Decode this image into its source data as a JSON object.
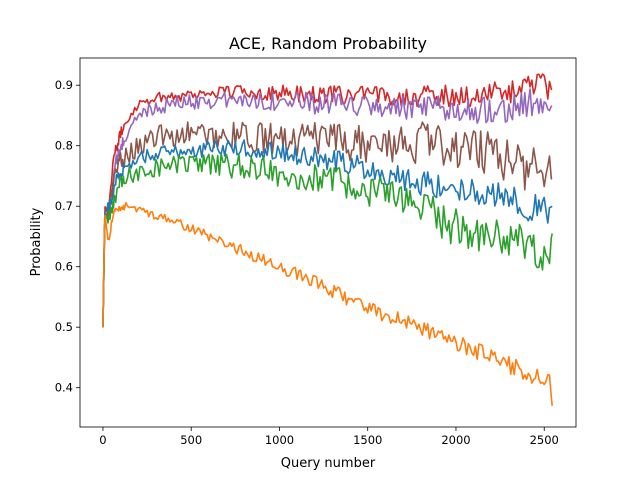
{
  "chart_data": {
    "type": "line",
    "title": "ACE, Random Probability",
    "xlabel": "Query number",
    "ylabel": "Probability",
    "xlim": [
      -130,
      2680
    ],
    "ylim": [
      0.335,
      0.945
    ],
    "xticks": [
      0,
      500,
      1000,
      1500,
      2000,
      2500
    ],
    "xtick_labels": [
      "0",
      "500",
      "1000",
      "1500",
      "2000",
      "2500"
    ],
    "yticks": [
      0.4,
      0.5,
      0.6,
      0.7,
      0.8,
      0.9
    ],
    "ytick_labels": [
      "0.4",
      "0.5",
      "0.6",
      "0.7",
      "0.8",
      "0.9"
    ],
    "grid": false,
    "legend": "none",
    "noise_note": "series are high-frequency noisy; points listed are the smoothed trend",
    "series": [
      {
        "name": "red",
        "color": "#d62728",
        "noise": 0.008,
        "points": [
          [
            0,
            0.5
          ],
          [
            10,
            0.7
          ],
          [
            30,
            0.69
          ],
          [
            60,
            0.78
          ],
          [
            100,
            0.82
          ],
          [
            150,
            0.85
          ],
          [
            200,
            0.87
          ],
          [
            300,
            0.88
          ],
          [
            500,
            0.885
          ],
          [
            700,
            0.89
          ],
          [
            900,
            0.888
          ],
          [
            1200,
            0.885
          ],
          [
            1500,
            0.883
          ],
          [
            1800,
            0.882
          ],
          [
            2100,
            0.883
          ],
          [
            2300,
            0.888
          ],
          [
            2450,
            0.905
          ],
          [
            2530,
            0.895
          ],
          [
            2545,
            0.893
          ]
        ]
      },
      {
        "name": "purple",
        "color": "#9467bd",
        "noise": 0.01,
        "points": [
          [
            0,
            0.5
          ],
          [
            10,
            0.68
          ],
          [
            40,
            0.7
          ],
          [
            70,
            0.77
          ],
          [
            120,
            0.81
          ],
          [
            180,
            0.84
          ],
          [
            250,
            0.86
          ],
          [
            400,
            0.87
          ],
          [
            600,
            0.875
          ],
          [
            900,
            0.875
          ],
          [
            1200,
            0.87
          ],
          [
            1500,
            0.865
          ],
          [
            1800,
            0.86
          ],
          [
            2100,
            0.86
          ],
          [
            2300,
            0.863
          ],
          [
            2450,
            0.87
          ],
          [
            2545,
            0.865
          ]
        ]
      },
      {
        "name": "brown",
        "color": "#8c564b",
        "noise": 0.016,
        "points": [
          [
            0,
            0.5
          ],
          [
            10,
            0.68
          ],
          [
            40,
            0.7
          ],
          [
            70,
            0.76
          ],
          [
            120,
            0.78
          ],
          [
            200,
            0.8
          ],
          [
            300,
            0.815
          ],
          [
            500,
            0.82
          ],
          [
            800,
            0.815
          ],
          [
            1000,
            0.81
          ],
          [
            1200,
            0.81
          ],
          [
            1400,
            0.805
          ],
          [
            1600,
            0.8
          ],
          [
            1800,
            0.805
          ],
          [
            2000,
            0.8
          ],
          [
            2200,
            0.79
          ],
          [
            2400,
            0.765
          ],
          [
            2500,
            0.75
          ],
          [
            2545,
            0.745
          ]
        ]
      },
      {
        "name": "blue",
        "color": "#1f77b4",
        "noise": 0.01,
        "points": [
          [
            0,
            0.5
          ],
          [
            10,
            0.69
          ],
          [
            40,
            0.7
          ],
          [
            80,
            0.75
          ],
          [
            150,
            0.77
          ],
          [
            250,
            0.785
          ],
          [
            400,
            0.79
          ],
          [
            600,
            0.795
          ],
          [
            800,
            0.795
          ],
          [
            1000,
            0.79
          ],
          [
            1200,
            0.78
          ],
          [
            1400,
            0.77
          ],
          [
            1600,
            0.755
          ],
          [
            1800,
            0.74
          ],
          [
            2000,
            0.73
          ],
          [
            2200,
            0.72
          ],
          [
            2400,
            0.7
          ],
          [
            2500,
            0.69
          ],
          [
            2545,
            0.7
          ]
        ]
      },
      {
        "name": "green",
        "color": "#2ca02c",
        "noise": 0.014,
        "points": [
          [
            0,
            0.5
          ],
          [
            10,
            0.68
          ],
          [
            40,
            0.68
          ],
          [
            80,
            0.73
          ],
          [
            150,
            0.75
          ],
          [
            300,
            0.765
          ],
          [
            500,
            0.77
          ],
          [
            800,
            0.765
          ],
          [
            1000,
            0.755
          ],
          [
            1200,
            0.745
          ],
          [
            1400,
            0.735
          ],
          [
            1600,
            0.72
          ],
          [
            1800,
            0.7
          ],
          [
            1950,
            0.67
          ],
          [
            2100,
            0.66
          ],
          [
            2300,
            0.645
          ],
          [
            2450,
            0.625
          ],
          [
            2520,
            0.62
          ],
          [
            2545,
            0.655
          ]
        ]
      },
      {
        "name": "orange",
        "color": "#ff7f0e",
        "noise": 0.006,
        "points": [
          [
            0,
            0.5
          ],
          [
            10,
            0.69
          ],
          [
            30,
            0.64
          ],
          [
            60,
            0.69
          ],
          [
            120,
            0.7
          ],
          [
            200,
            0.695
          ],
          [
            400,
            0.675
          ],
          [
            600,
            0.65
          ],
          [
            800,
            0.625
          ],
          [
            1000,
            0.6
          ],
          [
            1200,
            0.575
          ],
          [
            1400,
            0.545
          ],
          [
            1600,
            0.52
          ],
          [
            1800,
            0.5
          ],
          [
            2000,
            0.475
          ],
          [
            2200,
            0.45
          ],
          [
            2400,
            0.425
          ],
          [
            2500,
            0.41
          ],
          [
            2530,
            0.415
          ],
          [
            2545,
            0.37
          ]
        ]
      }
    ]
  }
}
